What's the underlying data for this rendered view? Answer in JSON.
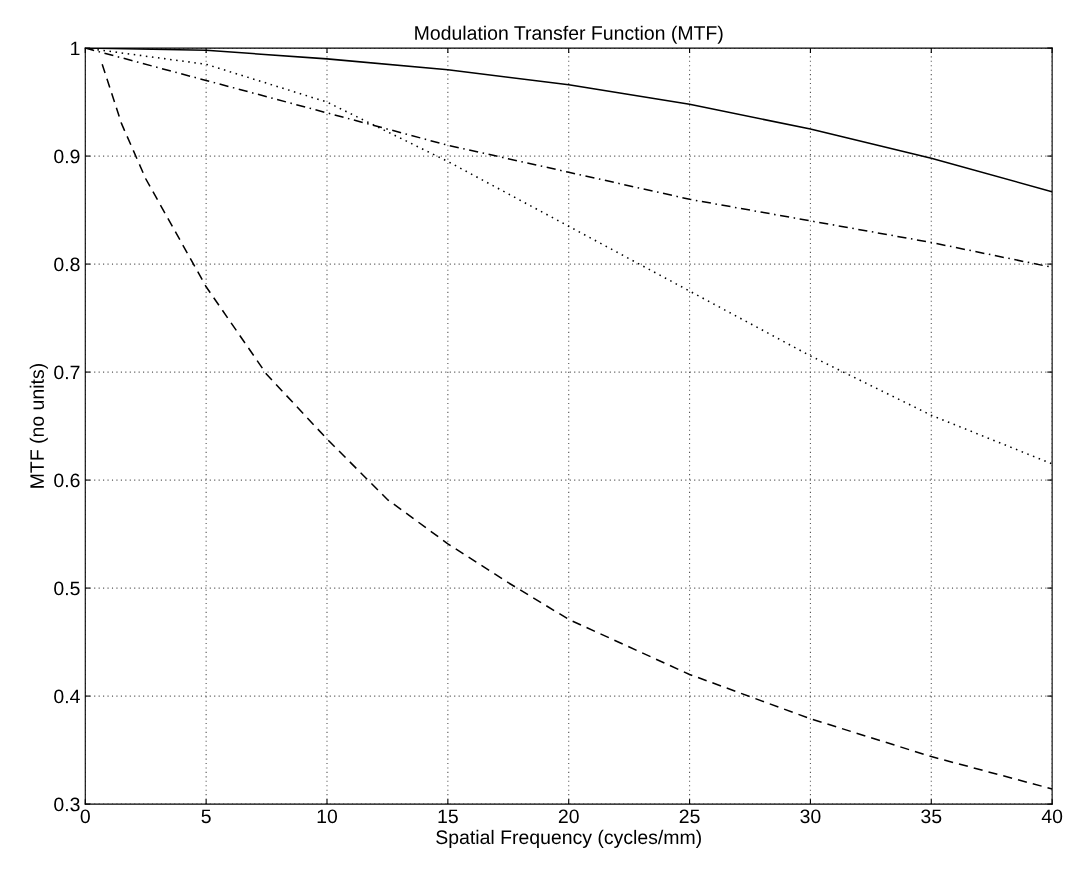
{
  "chart_data": {
    "type": "line",
    "title": "Modulation Transfer Function (MTF)",
    "xlabel": "Spatial Frequency (cycles/mm)",
    "ylabel": "MTF (no units)",
    "series": [
      {
        "color": "#000000",
        "line_style": "solid",
        "x": [
          0,
          5,
          10,
          15,
          20,
          25,
          30,
          35,
          40
        ],
        "values": [
          1,
          0.998,
          0.99,
          0.98,
          0.966,
          0.948,
          0.925,
          0.898,
          0.867
        ]
      },
      {
        "color": "#000000",
        "line_style": "dashdot",
        "x": [
          0,
          5,
          10,
          15,
          20,
          25,
          30,
          35,
          40
        ],
        "values": [
          1,
          0.97,
          0.94,
          0.91,
          0.885,
          0.86,
          0.84,
          0.82,
          0.797
        ]
      },
      {
        "color": "#000000",
        "line_style": "dotted",
        "x": [
          0,
          5,
          10,
          15,
          20,
          25,
          30,
          35,
          40
        ],
        "values": [
          1,
          0.985,
          0.95,
          0.895,
          0.835,
          0.775,
          0.715,
          0.66,
          0.615
        ]
      },
      {
        "color": "#000000",
        "line_style": "dashed",
        "x": [
          0.7,
          1.5,
          2.5,
          5,
          7.5,
          10,
          12.5,
          15,
          17.5,
          20,
          25,
          30,
          35,
          40
        ],
        "values": [
          0.985,
          0.93,
          0.879,
          0.779,
          0.698,
          0.638,
          0.582,
          0.541,
          0.505,
          0.471,
          0.42,
          0.379,
          0.344,
          0.314
        ]
      }
    ],
    "xlim": [
      0,
      40
    ],
    "ylim": [
      0.3,
      1
    ],
    "xticks": [
      0,
      5,
      10,
      15,
      20,
      25,
      30,
      35,
      40
    ],
    "yticks": [
      0.3,
      0.4,
      0.5,
      0.6,
      0.7,
      0.8,
      0.9,
      1
    ],
    "grid": true,
    "legend": false,
    "marker": "none"
  }
}
